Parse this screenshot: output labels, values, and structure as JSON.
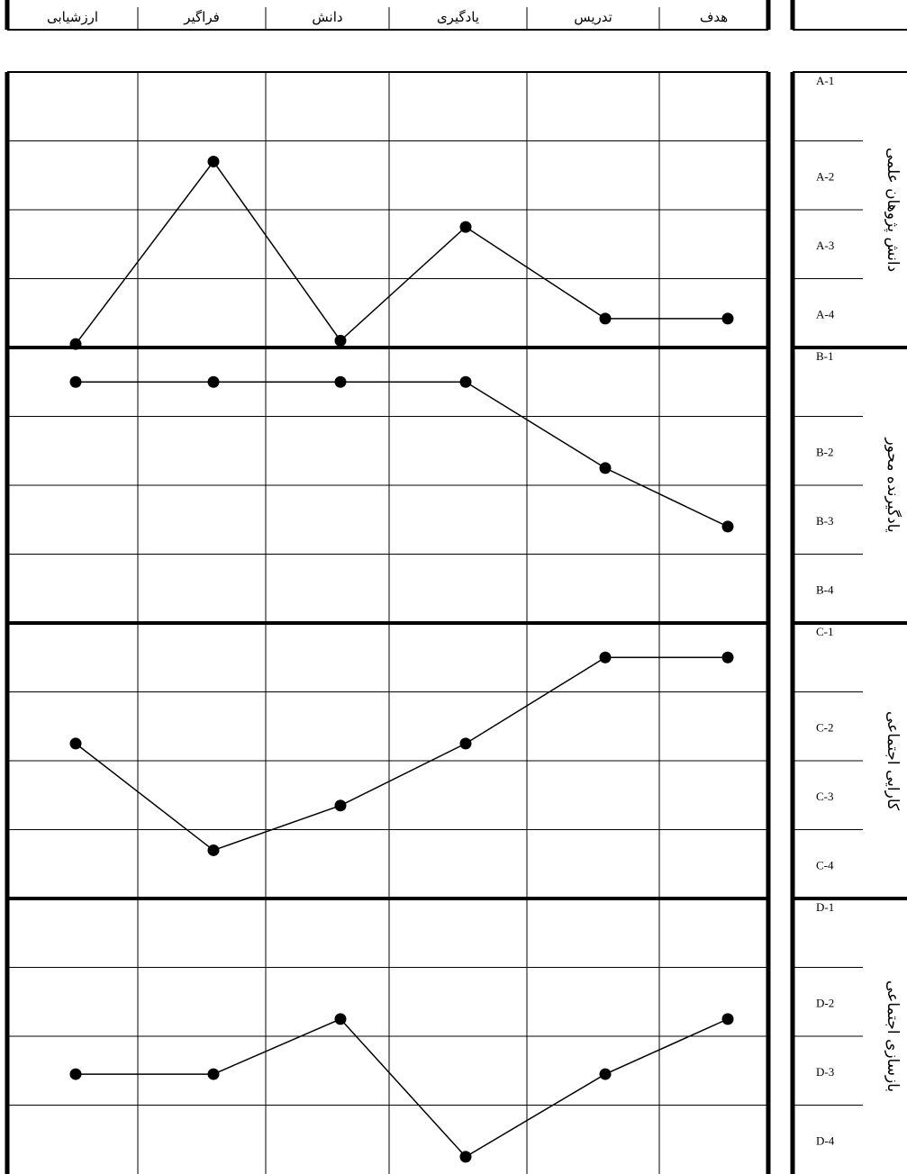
{
  "chart_data": {
    "type": "line",
    "categories": [
      "ارزشیابی",
      "فراگیر",
      "دانش",
      "یادگیری",
      "تدریس",
      "هدف"
    ],
    "row_labels": [
      "A-1",
      "A-2",
      "A-3",
      "A-4",
      "B-1",
      "B-2",
      "B-3",
      "B-4",
      "C-1",
      "C-2",
      "C-3",
      "C-4",
      "D-1",
      "D-2",
      "D-3",
      "D-4"
    ],
    "groups": [
      {
        "label": "دانش پژوهان علمی",
        "rows": [
          "A-1",
          "A-2",
          "A-3",
          "A-4"
        ]
      },
      {
        "label": "یادگیرنده محور",
        "rows": [
          "B-1",
          "B-2",
          "B-3",
          "B-4"
        ]
      },
      {
        "label": "کارایی اجتماعی",
        "rows": [
          "C-1",
          "C-2",
          "C-3",
          "C-4"
        ]
      },
      {
        "label": "بازسازی اجتماعی",
        "rows": [
          "D-1",
          "D-2",
          "D-3",
          "D-4"
        ]
      }
    ],
    "series": [
      {
        "group": "A",
        "values": [
          3.95,
          1.3,
          3.9,
          2.25,
          3.58,
          3.58
        ]
      },
      {
        "group": "B",
        "values": [
          0.5,
          0.5,
          0.5,
          0.5,
          1.75,
          2.6
        ]
      },
      {
        "group": "C",
        "values": [
          1.75,
          3.3,
          2.65,
          1.75,
          0.5,
          0.5
        ]
      },
      {
        "group": "D",
        "values": [
          2.55,
          2.55,
          1.75,
          3.75,
          2.55,
          1.75
        ]
      }
    ],
    "grid": true
  }
}
